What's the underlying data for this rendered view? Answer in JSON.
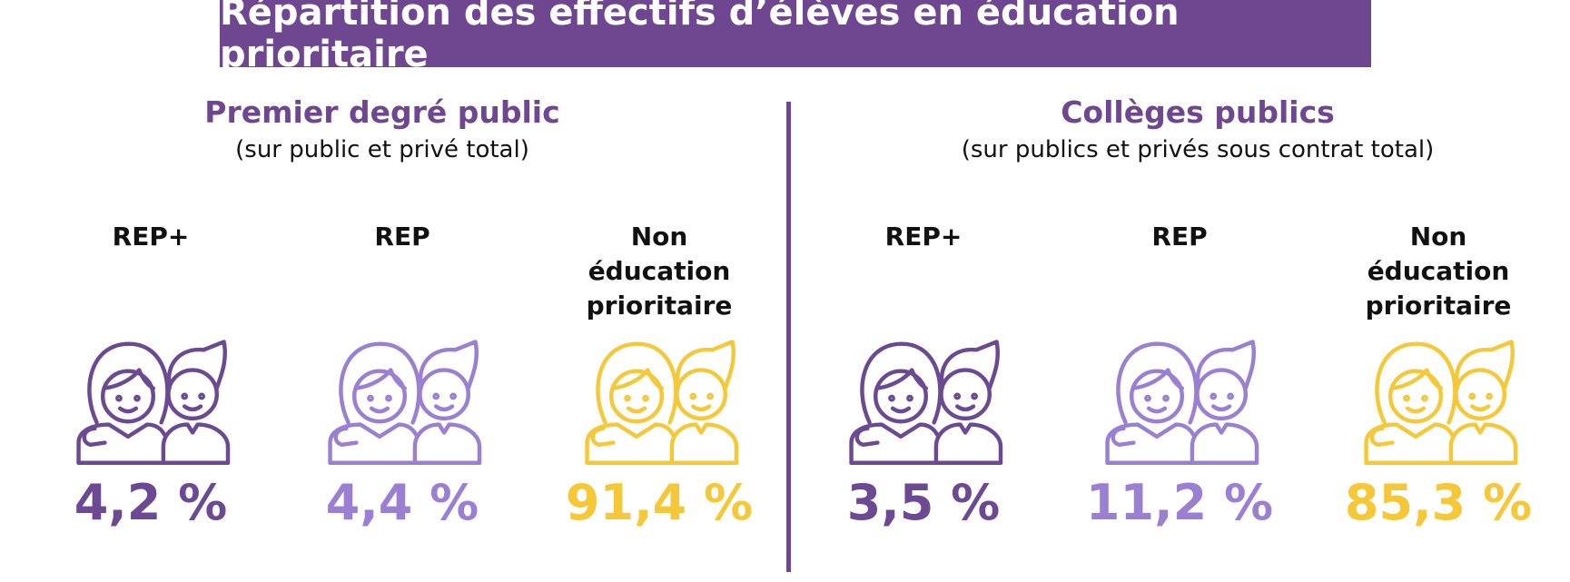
{
  "header": {
    "title": "Répartition des effectifs d’élèves en éducation prioritaire"
  },
  "panels": [
    {
      "title": "Premier degré public",
      "subtitle": "(sur public et privé total)",
      "items": [
        {
          "label": "REP+",
          "value": "4,2 %",
          "color": "#6b4a93"
        },
        {
          "label": "REP",
          "value": "4,4 %",
          "color": "#9a7fd3"
        },
        {
          "label": "Non éducation prioritaire",
          "value": "91,4 %",
          "color": "#f5c83a"
        }
      ]
    },
    {
      "title": "Collèges publics",
      "subtitle": "(sur publics et privés sous contrat total)",
      "items": [
        {
          "label": "REP+",
          "value": "3,5 %",
          "color": "#6b4a93"
        },
        {
          "label": "REP",
          "value": "11,2 %",
          "color": "#9a7fd3"
        },
        {
          "label": "Non éducation prioritaire",
          "value": "85,3 %",
          "color": "#f5c83a"
        }
      ]
    }
  ]
}
